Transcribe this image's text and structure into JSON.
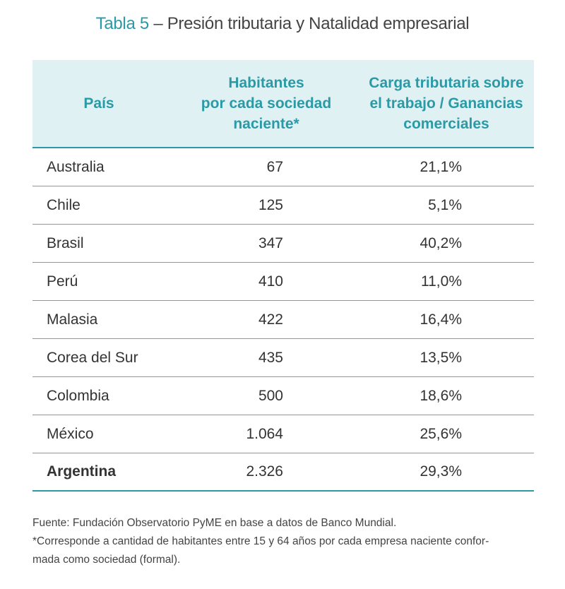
{
  "title": {
    "number": "Tabla 5",
    "text": "– Presión tributaria y Natalidad empresarial"
  },
  "table": {
    "headers": {
      "country": "País",
      "habitantes": [
        "Habitantes",
        "por cada sociedad",
        "naciente*"
      ],
      "carga": [
        "Carga tributaria sobre",
        "el trabajo / Ganancias",
        "comerciales"
      ]
    },
    "rows": [
      {
        "country": "Australia",
        "habitantes": "67",
        "carga": "21,1%"
      },
      {
        "country": "Chile",
        "habitantes": "125",
        "carga": "5,1%"
      },
      {
        "country": "Brasil",
        "habitantes": "347",
        "carga": "40,2%"
      },
      {
        "country": "Perú",
        "habitantes": "410",
        "carga": "11,0%"
      },
      {
        "country": "Malasia",
        "habitantes": "422",
        "carga": "16,4%"
      },
      {
        "country": "Corea del Sur",
        "habitantes": "435",
        "carga": "13,5%"
      },
      {
        "country": "Colombia",
        "habitantes": "500",
        "carga": "18,6%"
      },
      {
        "country": "México",
        "habitantes": "1.064",
        "carga": "25,6%"
      },
      {
        "country": "Argentina",
        "habitantes": "2.326",
        "carga": "29,3%"
      }
    ]
  },
  "notes": {
    "source": "Fuente: Fundación Observatorio PyME en base a datos de Banco Mundial.",
    "footnote_line1": "*Corresponde a cantidad de habitantes entre 15 y 64 años por cada empresa naciente confor-",
    "footnote_line2": "mada como sociedad (formal)."
  },
  "colors": {
    "accent": "#2a9aa7",
    "header_bg": "#dff1f3",
    "text": "#333333"
  }
}
